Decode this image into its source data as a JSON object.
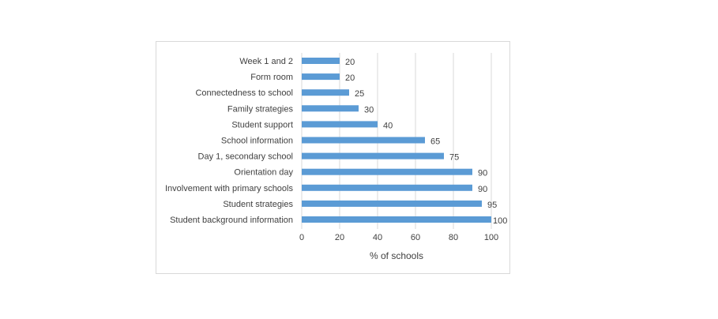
{
  "chart_data": {
    "type": "bar",
    "orientation": "horizontal",
    "categories": [
      "Week 1 and 2",
      "Form room",
      "Connectedness to school",
      "Family strategies",
      "Student support",
      "School information",
      "Day 1, secondary school",
      "Orientation day",
      "Involvement with primary schools",
      "Student strategies",
      "Student background information"
    ],
    "values": [
      20,
      20,
      25,
      30,
      40,
      65,
      75,
      90,
      90,
      95,
      100
    ],
    "xlabel": "% of schools",
    "ylabel": "",
    "xlim": [
      0,
      100
    ],
    "xticks": [
      "0",
      "20",
      "40",
      "60",
      "80",
      "100"
    ],
    "grid": "vertical",
    "bar_color": "#5b9bd5",
    "data_labels": true
  }
}
